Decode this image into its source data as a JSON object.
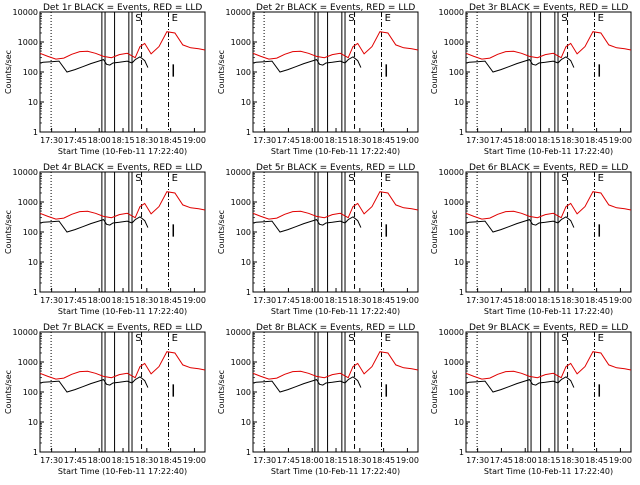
{
  "colors": {
    "events": "#000000",
    "lld": "#e00000",
    "background": "#ffffff"
  },
  "chart_data": {
    "type": "line",
    "ylabel": "Counts/sec",
    "xlabel": "Start Time (10-Feb-11 17:22:40)",
    "yscale": "log",
    "ylim": [
      1,
      10000
    ],
    "yticks": [
      "1",
      "10",
      "100",
      "1000",
      "10000"
    ],
    "xticks": [
      "17:30",
      "17:45",
      "18:00",
      "18:15",
      "18:30",
      "18:45",
      "19:00"
    ],
    "markers": [
      "S",
      "E"
    ],
    "legend_text": "BLACK = Events, RED = LLD",
    "panels": [
      {
        "title": "Det 1r BLACK = Events, RED = LLD"
      },
      {
        "title": "Det 2r BLACK = Events, RED = LLD"
      },
      {
        "title": "Det 3r BLACK = Events, RED = LLD"
      },
      {
        "title": "Det 4r BLACK = Events, RED = LLD"
      },
      {
        "title": "Det 5r BLACK = Events, RED = LLD"
      },
      {
        "title": "Det 6r BLACK = Events, RED = LLD"
      },
      {
        "title": "Det 7r BLACK = Events, RED = LLD"
      },
      {
        "title": "Det 8r BLACK = Events, RED = LLD"
      },
      {
        "title": "Det 9r BLACK = Events, RED = LLD"
      }
    ],
    "series": [
      {
        "name": "LLD",
        "color": "#e00000",
        "x_minutes": [
          0,
          5,
          10,
          15,
          20,
          25,
          30,
          35,
          40,
          45,
          50,
          55,
          60,
          63,
          66,
          70,
          75,
          80,
          85,
          90,
          95,
          100,
          104
        ],
        "y": [
          420,
          330,
          270,
          290,
          390,
          480,
          490,
          420,
          330,
          300,
          380,
          420,
          300,
          700,
          900,
          400,
          700,
          2200,
          2000,
          800,
          640,
          600,
          540
        ]
      },
      {
        "name": "Events",
        "color": "#000000",
        "x_minutes": [
          0,
          2,
          7,
          12,
          17,
          22,
          27,
          32,
          37,
          40,
          42,
          44,
          46,
          50,
          55,
          58,
          60,
          63,
          66,
          68
        ],
        "y": [
          200,
          210,
          220,
          230,
          100,
          120,
          150,
          190,
          230,
          260,
          180,
          170,
          200,
          210,
          230,
          200,
          260,
          320,
          240,
          140
        ]
      }
    ],
    "vertical_lines": [
      {
        "x_minutes": 7,
        "style": "dotted"
      },
      {
        "x_minutes": 39,
        "style": "solid"
      },
      {
        "x_minutes": 41,
        "style": "solid"
      },
      {
        "x_minutes": 47,
        "style": "solid"
      },
      {
        "x_minutes": 56,
        "style": "solid"
      },
      {
        "x_minutes": 58,
        "style": "solid"
      },
      {
        "x_minutes": 64,
        "style": "dashed"
      },
      {
        "x_minutes": 81,
        "style": "dash-dot"
      }
    ]
  }
}
